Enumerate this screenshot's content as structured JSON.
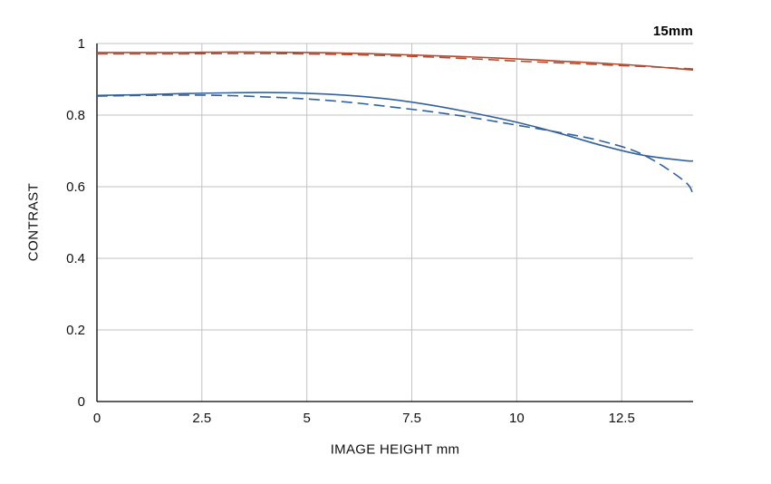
{
  "chart_data": {
    "type": "line",
    "title": "",
    "annotation": "15mm",
    "xlabel": "IMAGE HEIGHT  mm",
    "ylabel": "CONTRAST",
    "xlim": [
      0,
      14.2
    ],
    "ylim": [
      0,
      1
    ],
    "xticks": [
      0,
      2.5,
      5,
      7.5,
      10,
      12.5
    ],
    "yticks": [
      0,
      0.2,
      0.4,
      0.6,
      0.8,
      1
    ],
    "grid": true,
    "grid_color": "#c2c2c2",
    "axis_color": "#000000",
    "legend": "none",
    "x": [
      0,
      1,
      2,
      3,
      4,
      5,
      6,
      7,
      8,
      9,
      10,
      11,
      12,
      13,
      14,
      14.2
    ],
    "series": [
      {
        "name": "red-solid",
        "color": "#b34b31",
        "style": "solid",
        "values": [
          0.975,
          0.975,
          0.975,
          0.976,
          0.976,
          0.975,
          0.973,
          0.97,
          0.966,
          0.962,
          0.957,
          0.951,
          0.945,
          0.938,
          0.928,
          0.926
        ]
      },
      {
        "name": "red-dashed",
        "color": "#b34b31",
        "style": "dashed",
        "values": [
          0.971,
          0.971,
          0.971,
          0.972,
          0.972,
          0.971,
          0.969,
          0.966,
          0.962,
          0.957,
          0.951,
          0.946,
          0.941,
          0.936,
          0.93,
          0.929
        ]
      },
      {
        "name": "blue-solid",
        "color": "#33619c",
        "style": "solid",
        "values": [
          0.855,
          0.857,
          0.86,
          0.862,
          0.863,
          0.861,
          0.855,
          0.844,
          0.827,
          0.805,
          0.78,
          0.75,
          0.716,
          0.688,
          0.673,
          0.672
        ]
      },
      {
        "name": "blue-dashed",
        "color": "#33619c",
        "style": "dashed",
        "values": [
          0.853,
          0.855,
          0.856,
          0.855,
          0.851,
          0.845,
          0.836,
          0.823,
          0.809,
          0.792,
          0.772,
          0.752,
          0.728,
          0.69,
          0.615,
          0.575
        ]
      }
    ]
  }
}
